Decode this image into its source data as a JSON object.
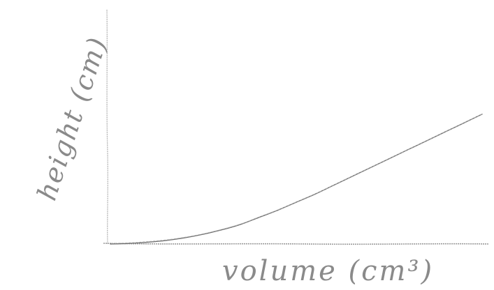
{
  "chart_data": {
    "type": "line",
    "style": "hand-drawn sketch",
    "xlabel": "volume (cm³)",
    "ylabel": "height (cm)",
    "grid": false,
    "legend": "none",
    "x_tick_labels": [],
    "y_tick_labels": [],
    "series": [
      {
        "values_description_free": true,
        "x": [
          0,
          5,
          10,
          15,
          20,
          25,
          30,
          35,
          40,
          45,
          50,
          55,
          60,
          65,
          70,
          75,
          80,
          85,
          90,
          95,
          100
        ],
        "y": [
          0,
          0.3,
          1,
          2,
          3.5,
          5.5,
          8,
          11,
          15,
          19,
          23.5,
          28,
          33,
          38,
          43,
          48,
          53,
          58,
          63,
          68,
          73
        ]
      }
    ],
    "xlim": [
      0,
      100
    ],
    "ylim": [
      0,
      100
    ],
    "colors": {
      "axis": "#9a9a9a",
      "curve": "#6f6f6f",
      "label": "#8a8a8a"
    }
  }
}
